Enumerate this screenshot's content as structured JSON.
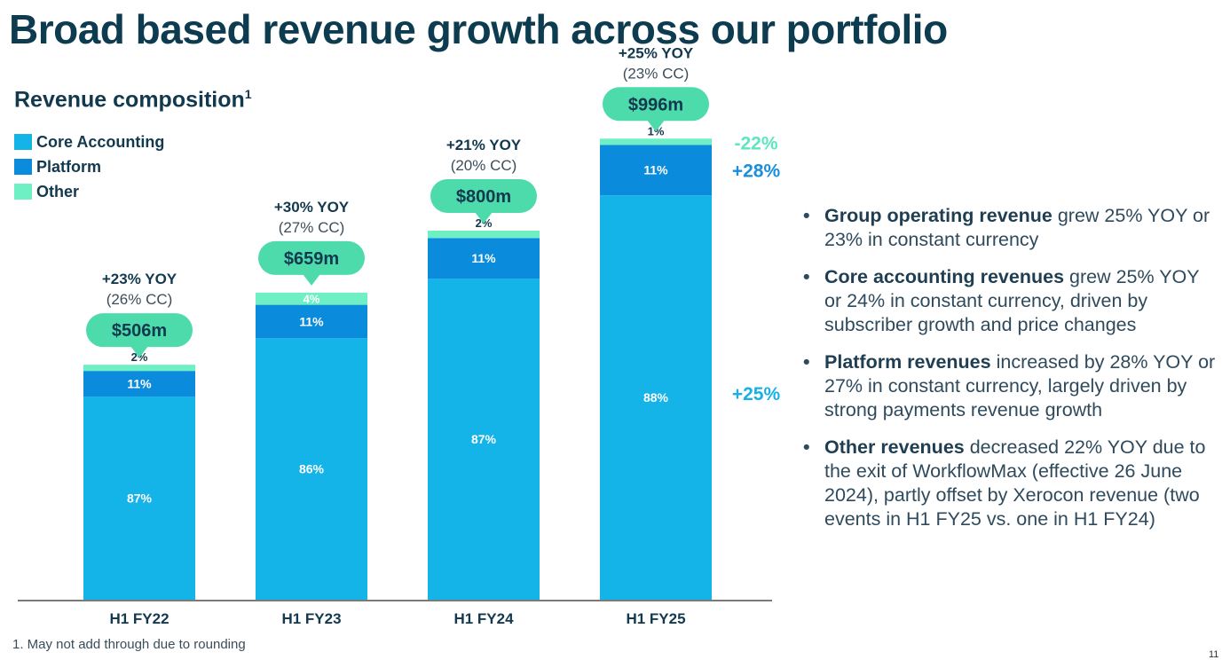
{
  "title": "Broad based revenue growth across our portfolio",
  "subtitle": "Revenue composition",
  "subtitle_sup": "1",
  "legend": [
    {
      "label": "Core Accounting",
      "color": "#14b3e8"
    },
    {
      "label": "Platform",
      "color": "#0a8bdc"
    },
    {
      "label": "Other",
      "color": "#6ef0c4"
    }
  ],
  "bullets": [
    {
      "bold": "Group operating revenue",
      "text": " grew 25% YOY or 23% in constant currency"
    },
    {
      "bold": "Core accounting revenues",
      "text": " grew 25% YOY or 24% in constant currency, driven by subscriber growth and price changes"
    },
    {
      "bold": "Platform revenues",
      "text": " increased by 28% YOY or 27% in constant currency, largely driven by strong payments revenue growth"
    },
    {
      "bold": "Other revenues",
      "text": " decreased 22% YOY due to the exit of WorkflowMax (effective 26 June 2024), partly offset by Xerocon revenue (two events in H1 FY25 vs. one in H1 FY24)"
    }
  ],
  "footnote": "1. May not add through due to rounding",
  "page_number": "11",
  "chart_data": {
    "type": "bar",
    "stacked": true,
    "title": "Revenue composition",
    "xlabel": "",
    "ylabel": "",
    "units": "NZ$m",
    "categories": [
      "H1 FY22",
      "H1 FY23",
      "H1 FY24",
      "H1 FY25"
    ],
    "totals": [
      506,
      659,
      800,
      996
    ],
    "total_labels": [
      "$506m",
      "$659m",
      "$800m",
      "$996m"
    ],
    "yoy_labels": [
      "+23% YOY",
      "+30% YOY",
      "+21% YOY",
      "+25% YOY"
    ],
    "cc_labels": [
      "(26% CC)",
      "(27% CC)",
      "(20% CC)",
      "(23% CC)"
    ],
    "series": [
      {
        "name": "Core Accounting",
        "color": "#14b3e8",
        "share_pct": [
          87,
          86,
          87,
          88
        ],
        "labels": [
          "87%",
          "86%",
          "87%",
          "88%"
        ]
      },
      {
        "name": "Platform",
        "color": "#0a8bdc",
        "share_pct": [
          11,
          11,
          11,
          11
        ],
        "labels": [
          "11%",
          "11%",
          "11%",
          "11%"
        ]
      },
      {
        "name": "Other",
        "color": "#6ef0c4",
        "share_pct": [
          2,
          4,
          2,
          1
        ],
        "labels": [
          "2%",
          "4%",
          "2%",
          "1%"
        ]
      }
    ],
    "segment_growth_latest": [
      {
        "series": "Other",
        "label": "-22%",
        "color": "#5ee6c0"
      },
      {
        "series": "Platform",
        "label": "+28%",
        "color": "#1a8fdc"
      },
      {
        "series": "Core Accounting",
        "label": "+25%",
        "color": "#1ab0e6"
      }
    ],
    "bubble_color": "#4edbab",
    "ylim": [
      0,
      1050
    ],
    "grid": false,
    "legend_position": "top-left"
  }
}
